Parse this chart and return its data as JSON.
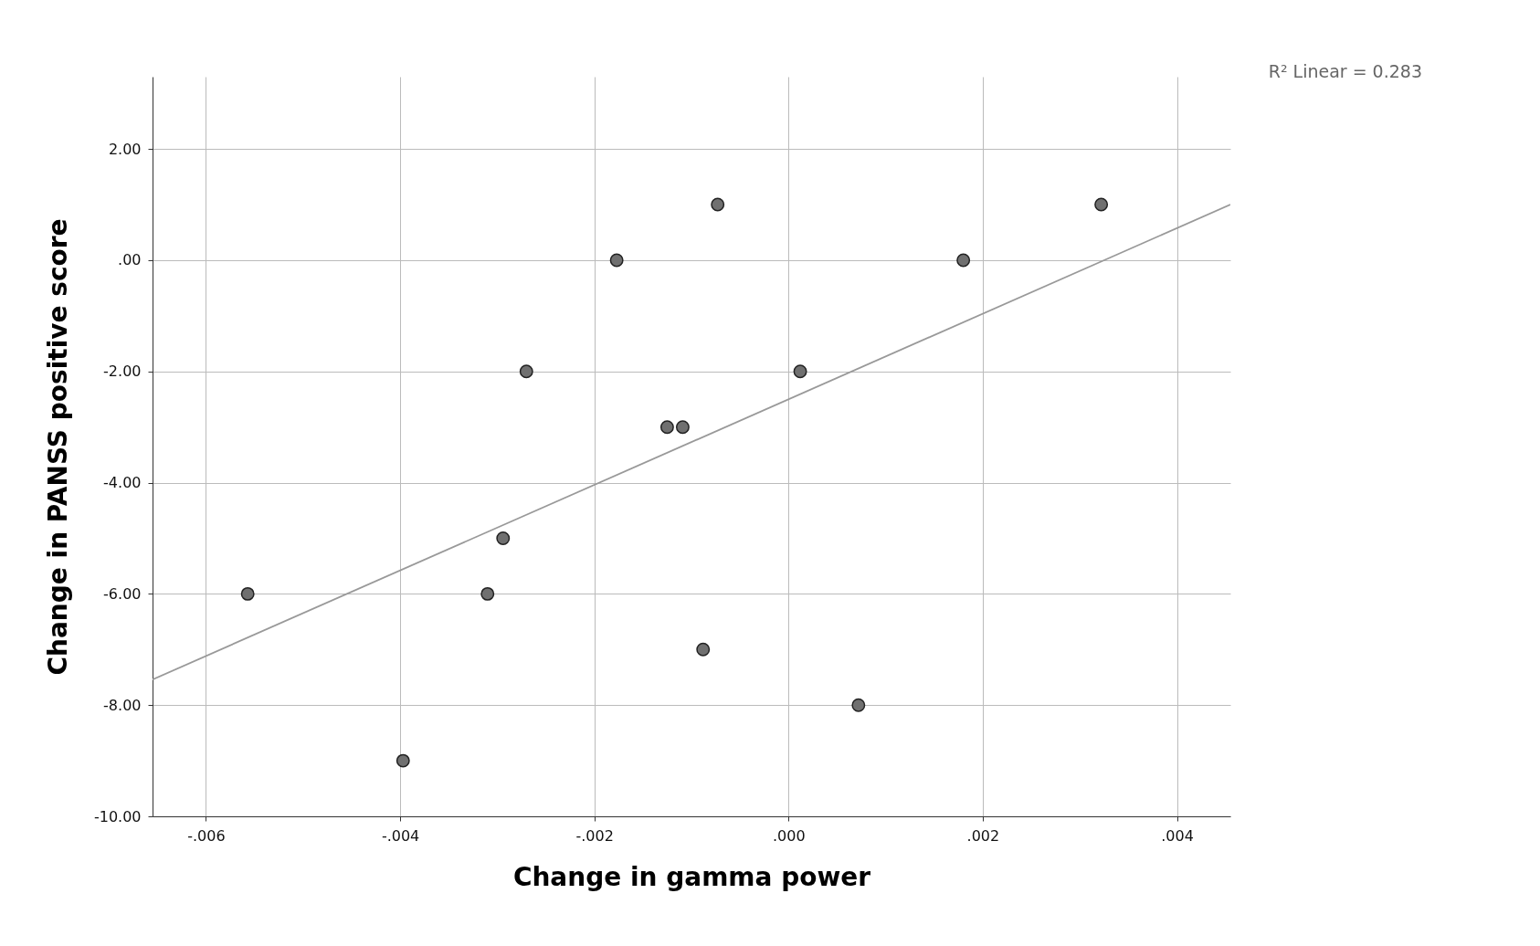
{
  "chart_data": {
    "type": "scatter",
    "xlabel": "Change in gamma power",
    "ylabel": "Change in PANSS positive score",
    "annotations": [
      "R² Linear = 0.283"
    ],
    "series": [
      {
        "color": "#707070",
        "marker": "circle",
        "x": [
          -0.00557,
          -0.00397,
          -0.0031,
          -0.00294,
          -0.0027,
          -0.00177,
          -0.00125,
          -0.00109,
          -0.00088,
          -0.00073,
          0.00012,
          0.00072,
          0.0018,
          0.00322
        ],
        "values": [
          -6,
          -9,
          -6,
          -5,
          -2,
          0,
          -3,
          -3,
          -7,
          1,
          -2,
          -8,
          0,
          1
        ]
      },
      {
        "type": "line",
        "marker": "none",
        "color": "#999999",
        "x": [
          -0.00655,
          0.00455
        ],
        "values": [
          -7.54,
          1.0
        ]
      }
    ],
    "xlim": [
      -0.00655,
      0.00455
    ],
    "ylim": [
      -10,
      3.3
    ],
    "xticks": [
      {
        "value": -0.006,
        "label": "-.006"
      },
      {
        "value": -0.004,
        "label": "-.004"
      },
      {
        "value": -0.002,
        "label": "-.002"
      },
      {
        "value": 0,
        "label": ".000"
      },
      {
        "value": 0.002,
        "label": ".002"
      },
      {
        "value": 0.004,
        "label": ".004"
      }
    ],
    "yticks": [
      {
        "value": -10,
        "label": "-10.00"
      },
      {
        "value": -8,
        "label": "-8.00"
      },
      {
        "value": -6,
        "label": "-6.00"
      },
      {
        "value": -4,
        "label": "-4.00"
      },
      {
        "value": -2,
        "label": "-2.00"
      },
      {
        "value": 0,
        "label": ".00"
      },
      {
        "value": 2,
        "label": "2.00"
      }
    ],
    "grid": true
  }
}
